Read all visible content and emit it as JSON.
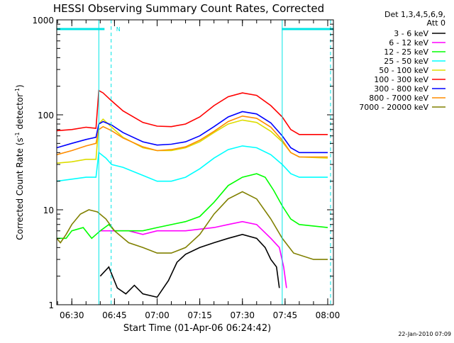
{
  "chart_data": {
    "type": "line",
    "title": "HESSI Observing Summary Count Rates, Corrected",
    "xlabel": "Start Time (01-Apr-06 06:24:42)",
    "ylabel_main": "Corrected Count Rate (s",
    "ylabel_sup1": "-1",
    "ylabel_mid": " detector",
    "ylabel_sup2": "-1",
    "ylabel_end": ")",
    "y_scale": "log",
    "ylim": [
      1,
      1000
    ],
    "x_range": [
      "06:24:42",
      "08:02:00"
    ],
    "x_ticks": [
      "06:30",
      "06:45",
      "07:00",
      "07:15",
      "07:30",
      "07:45",
      "08:00"
    ],
    "y_ticks": [
      "1",
      "10",
      "100",
      "1000"
    ],
    "legend_position": "right",
    "legend_header": [
      "Det 1,3,4,5,6,9,",
      "Att 0"
    ],
    "footer_timestamp": "22-Jan-2010 07:09",
    "grid": false,
    "annotations": {
      "night_marker": "N",
      "night_bars": [
        [
          "06:24:42",
          "06:41:30"
        ],
        [
          "07:43:50",
          "08:02:00"
        ]
      ],
      "vertical_lines": [
        {
          "t": "06:39:30",
          "style": "solid"
        },
        {
          "t": "06:43:50",
          "style": "dashed"
        },
        {
          "t": "07:44:00",
          "style": "solid"
        },
        {
          "t": "08:01:00",
          "style": "dashed"
        }
      ],
      "annotation_color": "#00e5e5"
    },
    "series": [
      {
        "name": "3 - 6 keV",
        "color": "#000000",
        "points": [
          [
            "06:40:00",
            2
          ],
          [
            "06:43:00",
            2.5
          ],
          [
            "06:46:00",
            1.5
          ],
          [
            "06:49:00",
            1.3
          ],
          [
            "06:52:00",
            1.6
          ],
          [
            "06:55:00",
            1.3
          ],
          [
            "07:00:00",
            1.2
          ],
          [
            "07:04:00",
            1.8
          ],
          [
            "07:07:00",
            2.8
          ],
          [
            "07:10:00",
            3.4
          ],
          [
            "07:15:00",
            4
          ],
          [
            "07:20:00",
            4.5
          ],
          [
            "07:25:00",
            5
          ],
          [
            "07:30:00",
            5.5
          ],
          [
            "07:35:00",
            5
          ],
          [
            "07:38:00",
            4
          ],
          [
            "07:40:00",
            3
          ],
          [
            "07:42:00",
            2.5
          ],
          [
            "07:43:00",
            1.5
          ]
        ]
      },
      {
        "name": "6 - 12 keV",
        "color": "#ff00ff",
        "points": [
          [
            "06:40:00",
            6
          ],
          [
            "06:45:00",
            6
          ],
          [
            "06:50:00",
            6
          ],
          [
            "06:55:00",
            5.5
          ],
          [
            "07:00:00",
            6
          ],
          [
            "07:10:00",
            6
          ],
          [
            "07:20:00",
            6.5
          ],
          [
            "07:25:00",
            7
          ],
          [
            "07:30:00",
            7.5
          ],
          [
            "07:35:00",
            7
          ],
          [
            "07:40:00",
            5
          ],
          [
            "07:43:00",
            4
          ],
          [
            "07:44:30",
            2.5
          ],
          [
            "07:45:30",
            1.5
          ]
        ]
      },
      {
        "name": "12 - 25 keV",
        "color": "#00ff00",
        "points": [
          [
            "06:24:42",
            5
          ],
          [
            "06:28:00",
            5
          ],
          [
            "06:30:00",
            6
          ],
          [
            "06:34:00",
            6.5
          ],
          [
            "06:37:00",
            5
          ],
          [
            "06:40:00",
            6
          ],
          [
            "06:43:00",
            7
          ],
          [
            "06:45:00",
            6
          ],
          [
            "06:55:00",
            6
          ],
          [
            "07:00:00",
            6.5
          ],
          [
            "07:10:00",
            7.5
          ],
          [
            "07:15:00",
            8.5
          ],
          [
            "07:20:00",
            12
          ],
          [
            "07:25:00",
            18
          ],
          [
            "07:30:00",
            22
          ],
          [
            "07:35:00",
            24
          ],
          [
            "07:38:00",
            22
          ],
          [
            "07:41:00",
            16
          ],
          [
            "07:44:00",
            11
          ],
          [
            "07:47:00",
            8
          ],
          [
            "07:50:00",
            7
          ],
          [
            "08:00:00",
            6.5
          ]
        ]
      },
      {
        "name": "25 - 50 keV",
        "color": "#00ffff",
        "points": [
          [
            "06:24:42",
            20
          ],
          [
            "06:30:00",
            21
          ],
          [
            "06:35:00",
            22
          ],
          [
            "06:38:30",
            22
          ],
          [
            "06:39:30",
            40
          ],
          [
            "06:42:00",
            35
          ],
          [
            "06:44:00",
            30
          ],
          [
            "06:48:00",
            28
          ],
          [
            "06:55:00",
            23
          ],
          [
            "07:00:00",
            20
          ],
          [
            "07:05:00",
            20
          ],
          [
            "07:10:00",
            22
          ],
          [
            "07:15:00",
            27
          ],
          [
            "07:20:00",
            35
          ],
          [
            "07:25:00",
            43
          ],
          [
            "07:30:00",
            47
          ],
          [
            "07:35:00",
            45
          ],
          [
            "07:40:00",
            38
          ],
          [
            "07:44:00",
            30
          ],
          [
            "07:47:00",
            24
          ],
          [
            "07:50:00",
            22
          ],
          [
            "08:00:00",
            22
          ]
        ]
      },
      {
        "name": "50 - 100 keV",
        "color": "#dddd00",
        "points": [
          [
            "06:24:42",
            31
          ],
          [
            "06:30:00",
            32
          ],
          [
            "06:35:00",
            34
          ],
          [
            "06:38:30",
            34
          ],
          [
            "06:39:30",
            80
          ],
          [
            "06:41:00",
            90
          ],
          [
            "06:44:00",
            74
          ],
          [
            "06:48:00",
            58
          ],
          [
            "06:55:00",
            45
          ],
          [
            "07:00:00",
            42
          ],
          [
            "07:05:00",
            42
          ],
          [
            "07:10:00",
            45
          ],
          [
            "07:15:00",
            52
          ],
          [
            "07:20:00",
            65
          ],
          [
            "07:25:00",
            80
          ],
          [
            "07:30:00",
            88
          ],
          [
            "07:35:00",
            83
          ],
          [
            "07:40:00",
            67
          ],
          [
            "07:44:00",
            52
          ],
          [
            "07:47:00",
            40
          ],
          [
            "07:50:00",
            36
          ],
          [
            "08:00:00",
            35
          ]
        ]
      },
      {
        "name": "100 - 300 keV",
        "color": "#ff0000",
        "points": [
          [
            "06:24:42",
            68
          ],
          [
            "06:30:00",
            70
          ],
          [
            "06:35:00",
            74
          ],
          [
            "06:38:30",
            72
          ],
          [
            "06:39:30",
            180
          ],
          [
            "06:41:00",
            170
          ],
          [
            "06:44:00",
            140
          ],
          [
            "06:48:00",
            110
          ],
          [
            "06:55:00",
            83
          ],
          [
            "07:00:00",
            76
          ],
          [
            "07:05:00",
            75
          ],
          [
            "07:10:00",
            80
          ],
          [
            "07:15:00",
            95
          ],
          [
            "07:20:00",
            125
          ],
          [
            "07:25:00",
            155
          ],
          [
            "07:30:00",
            170
          ],
          [
            "07:35:00",
            160
          ],
          [
            "07:40:00",
            125
          ],
          [
            "07:44:00",
            95
          ],
          [
            "07:47:00",
            70
          ],
          [
            "07:50:00",
            62
          ],
          [
            "08:00:00",
            62
          ]
        ]
      },
      {
        "name": "300 - 800 keV",
        "color": "#0000ff",
        "points": [
          [
            "06:24:42",
            45
          ],
          [
            "06:30:00",
            50
          ],
          [
            "06:35:00",
            55
          ],
          [
            "06:38:30",
            58
          ],
          [
            "06:39:30",
            80
          ],
          [
            "06:41:00",
            85
          ],
          [
            "06:44:00",
            78
          ],
          [
            "06:48:00",
            65
          ],
          [
            "06:55:00",
            52
          ],
          [
            "07:00:00",
            48
          ],
          [
            "07:05:00",
            49
          ],
          [
            "07:10:00",
            52
          ],
          [
            "07:15:00",
            60
          ],
          [
            "07:20:00",
            75
          ],
          [
            "07:25:00",
            95
          ],
          [
            "07:30:00",
            108
          ],
          [
            "07:35:00",
            102
          ],
          [
            "07:40:00",
            82
          ],
          [
            "07:44:00",
            60
          ],
          [
            "07:47:00",
            45
          ],
          [
            "07:50:00",
            40
          ],
          [
            "08:00:00",
            40
          ]
        ]
      },
      {
        "name": "800 - 7000 keV",
        "color": "#ff8c00",
        "points": [
          [
            "06:24:42",
            38
          ],
          [
            "06:30:00",
            42
          ],
          [
            "06:35:00",
            47
          ],
          [
            "06:38:30",
            50
          ],
          [
            "06:39:30",
            70
          ],
          [
            "06:41:00",
            75
          ],
          [
            "06:44:00",
            68
          ],
          [
            "06:48:00",
            57
          ],
          [
            "06:55:00",
            46
          ],
          [
            "07:00:00",
            42
          ],
          [
            "07:05:00",
            43
          ],
          [
            "07:10:00",
            46
          ],
          [
            "07:15:00",
            54
          ],
          [
            "07:20:00",
            67
          ],
          [
            "07:25:00",
            85
          ],
          [
            "07:30:00",
            97
          ],
          [
            "07:35:00",
            92
          ],
          [
            "07:40:00",
            74
          ],
          [
            "07:44:00",
            54
          ],
          [
            "07:47:00",
            40
          ],
          [
            "07:50:00",
            36
          ],
          [
            "08:00:00",
            36
          ]
        ]
      },
      {
        "name": "7000 - 20000 keV",
        "color": "#808000",
        "points": [
          [
            "06:24:42",
            5
          ],
          [
            "06:26:00",
            4.5
          ],
          [
            "06:28:00",
            5.5
          ],
          [
            "06:30:00",
            7
          ],
          [
            "06:33:00",
            9
          ],
          [
            "06:36:00",
            10
          ],
          [
            "06:39:00",
            9.5
          ],
          [
            "06:42:00",
            8
          ],
          [
            "06:45:00",
            6
          ],
          [
            "06:50:00",
            4.5
          ],
          [
            "06:55:00",
            4
          ],
          [
            "07:00:00",
            3.5
          ],
          [
            "07:05:00",
            3.5
          ],
          [
            "07:10:00",
            4
          ],
          [
            "07:15:00",
            5.5
          ],
          [
            "07:20:00",
            9
          ],
          [
            "07:25:00",
            13
          ],
          [
            "07:30:00",
            15.5
          ],
          [
            "07:35:00",
            13
          ],
          [
            "07:40:00",
            8
          ],
          [
            "07:44:00",
            5
          ],
          [
            "07:48:00",
            3.5
          ],
          [
            "07:55:00",
            3
          ],
          [
            "08:00:00",
            3
          ]
        ]
      }
    ]
  }
}
